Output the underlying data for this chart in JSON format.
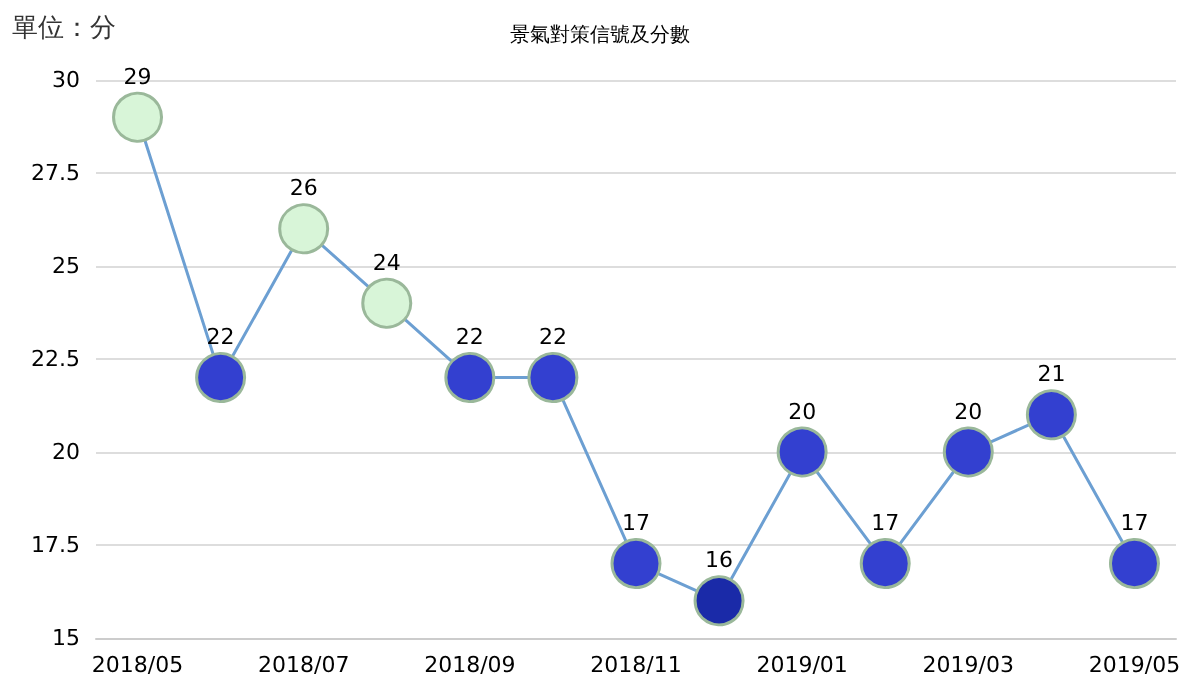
{
  "chart_data": {
    "type": "line",
    "title": "景氣對策信號及分數",
    "ylabel": "單位：分",
    "categories": [
      "2018/05",
      null,
      "2018/07",
      null,
      "2018/09",
      null,
      "2018/11",
      null,
      "2019/01",
      null,
      "2019/03",
      null,
      "2019/05"
    ],
    "series": [
      {
        "color": "#6c9fd2",
        "values": [
          29,
          22,
          26,
          24,
          22,
          22,
          17,
          16,
          20,
          17,
          20,
          21,
          17
        ],
        "colors": [
          "#d8f5d8",
          "#3340d0",
          "#d8f5d8",
          "#d8f5d8",
          "#3340d0",
          "#3340d0",
          "#3340d0",
          "#1a2aa8",
          "#3340d0",
          "#3340d0",
          "#3340d0",
          "#3340d0",
          "#3340d0"
        ]
      }
    ],
    "ylim": [
      15,
      30
    ],
    "yticks": [
      15,
      17.5,
      20,
      22.5,
      25,
      27.5,
      30
    ],
    "grid": "y",
    "marker": "circle",
    "data_labels": true
  }
}
